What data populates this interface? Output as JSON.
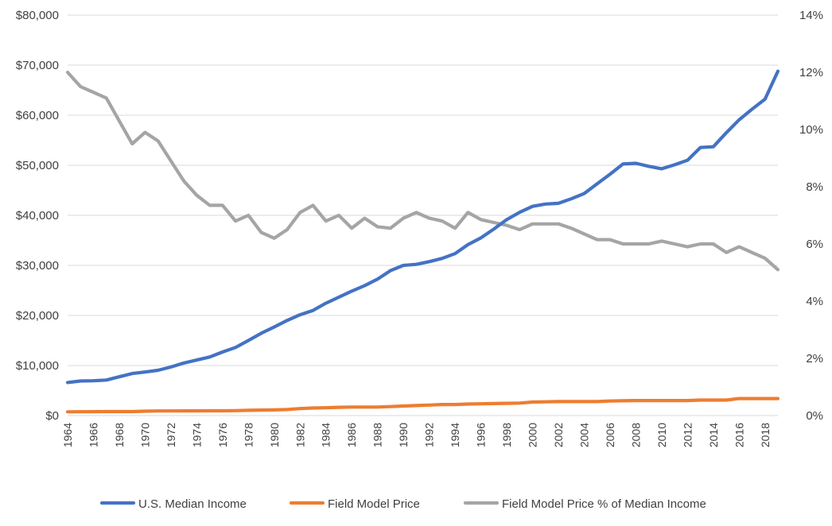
{
  "chart_data": {
    "type": "line",
    "title": "",
    "xlabel": "",
    "ylabel": "",
    "y2label": "",
    "grid": true,
    "legend_position": "bottom",
    "x": [
      1964,
      1965,
      1966,
      1967,
      1968,
      1969,
      1970,
      1971,
      1972,
      1973,
      1974,
      1975,
      1976,
      1977,
      1978,
      1979,
      1980,
      1981,
      1982,
      1983,
      1984,
      1985,
      1986,
      1987,
      1988,
      1989,
      1990,
      1991,
      1992,
      1993,
      1994,
      1995,
      1996,
      1997,
      1998,
      1999,
      2000,
      2001,
      2002,
      2003,
      2004,
      2005,
      2006,
      2007,
      2008,
      2009,
      2010,
      2011,
      2012,
      2013,
      2014,
      2015,
      2016,
      2017,
      2018,
      2019
    ],
    "x_tick_labels": [
      "1964",
      "1966",
      "1968",
      "1970",
      "1972",
      "1974",
      "1976",
      "1978",
      "1980",
      "1982",
      "1984",
      "1986",
      "1988",
      "1990",
      "1992",
      "1994",
      "1996",
      "1998",
      "2000",
      "2002",
      "2004",
      "2006",
      "2008",
      "2010",
      "2012",
      "2014",
      "2016",
      "2018"
    ],
    "y_axis": {
      "min": 0,
      "max": 80000,
      "ticks": [
        "$0",
        "$10,000",
        "$20,000",
        "$30,000",
        "$40,000",
        "$50,000",
        "$60,000",
        "$70,000",
        "$80,000"
      ]
    },
    "y2_axis": {
      "min": 0,
      "max": 0.14,
      "ticks": [
        "0%",
        "2%",
        "4%",
        "6%",
        "8%",
        "10%",
        "12%",
        "14%"
      ]
    },
    "series": [
      {
        "name": "U.S. Median Income",
        "axis": "left",
        "color": "#4472C4",
        "values": [
          6600,
          6900,
          6950,
          7100,
          7750,
          8400,
          8700,
          9050,
          9700,
          10500,
          11100,
          11700,
          12700,
          13600,
          15000,
          16450,
          17700,
          19000,
          20150,
          21000,
          22450,
          23650,
          24850,
          25950,
          27250,
          28950,
          30000,
          30200,
          30750,
          31400,
          32350,
          34150,
          35500,
          37250,
          39150,
          40600,
          41800,
          42250,
          42400,
          43300,
          44350,
          46300,
          48200,
          50250,
          50400,
          49800,
          49300,
          50100,
          51000,
          53550,
          53700,
          56500,
          59100,
          61200,
          63200,
          68800
        ]
      },
      {
        "name": "Field Model Price",
        "axis": "left",
        "color": "#ED7D31",
        "values": [
          750,
          760,
          780,
          790,
          800,
          800,
          880,
          920,
          920,
          930,
          940,
          950,
          960,
          980,
          1050,
          1100,
          1130,
          1200,
          1400,
          1500,
          1550,
          1650,
          1700,
          1700,
          1700,
          1800,
          1900,
          2000,
          2100,
          2200,
          2200,
          2300,
          2350,
          2400,
          2450,
          2500,
          2700,
          2750,
          2800,
          2800,
          2800,
          2800,
          2900,
          2950,
          3000,
          3000,
          3000,
          3000,
          3000,
          3100,
          3100,
          3100,
          3400,
          3400,
          3400,
          3400
        ]
      },
      {
        "name": "Field Model Price % of Median Income",
        "axis": "right",
        "color": "#A5A5A5",
        "values": [
          0.12,
          0.115,
          0.113,
          0.111,
          0.103,
          0.095,
          0.099,
          0.096,
          0.089,
          0.082,
          0.077,
          0.0735,
          0.0735,
          0.068,
          0.07,
          0.064,
          0.062,
          0.065,
          0.071,
          0.0735,
          0.068,
          0.07,
          0.0655,
          0.069,
          0.066,
          0.0655,
          0.069,
          0.071,
          0.069,
          0.068,
          0.0655,
          0.071,
          0.0685,
          0.0675,
          0.0665,
          0.065,
          0.067,
          0.067,
          0.067,
          0.0655,
          0.0635,
          0.0615,
          0.0615,
          0.06,
          0.06,
          0.06,
          0.061,
          0.06,
          0.059,
          0.06,
          0.06,
          0.057,
          0.059,
          0.057,
          0.055,
          0.051
        ]
      }
    ]
  }
}
